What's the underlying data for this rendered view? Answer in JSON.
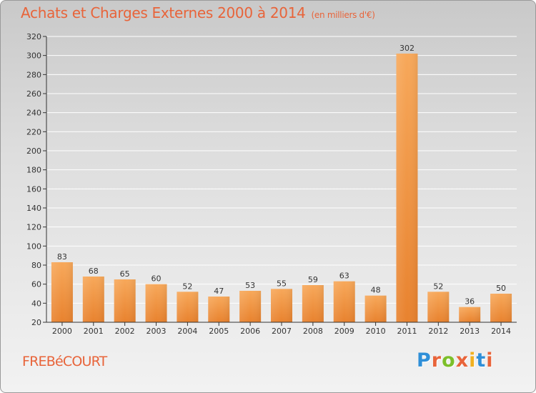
{
  "header": {
    "title": "Achats et Charges Externes 2000 à 2014",
    "subtitle": "(en milliers d'€)"
  },
  "footer": {
    "commune": "FREBéCOURT",
    "logo_letters": [
      "P",
      "r",
      "o",
      "x",
      "i",
      "t",
      "i"
    ],
    "logo_colors": [
      "#2f8fd8",
      "#e8643a",
      "#7cbf2a",
      "#e8643a",
      "#f0b020",
      "#2f8fd8",
      "#e8643a"
    ]
  },
  "colors": {
    "bar_light": "#f7a85a",
    "bar_dark": "#e8822e",
    "axis": "#333333",
    "grid": "#ffffff"
  },
  "chart_data": {
    "type": "bar",
    "title": "Achats et Charges Externes 2000 à 2014",
    "subtitle": "(en milliers d'€)",
    "categories": [
      "2000",
      "2001",
      "2002",
      "2003",
      "2004",
      "2005",
      "2006",
      "2007",
      "2008",
      "2009",
      "2010",
      "2011",
      "2012",
      "2013",
      "2014"
    ],
    "values": [
      83,
      68,
      65,
      60,
      52,
      47,
      53,
      55,
      59,
      63,
      48,
      302,
      52,
      36,
      50
    ],
    "ylim": [
      20,
      320
    ],
    "yticks": [
      20,
      40,
      60,
      80,
      100,
      120,
      140,
      160,
      180,
      200,
      220,
      240,
      260,
      280,
      300,
      320
    ],
    "grid": true,
    "data_labels": true,
    "xlabel": "",
    "ylabel": ""
  }
}
